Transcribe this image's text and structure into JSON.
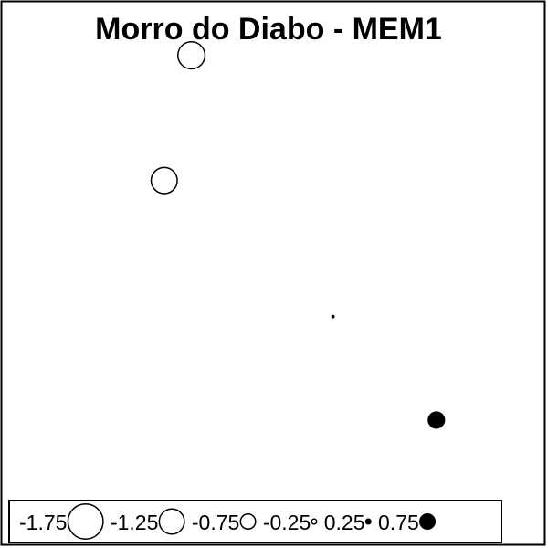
{
  "chart_data": {
    "type": "scatter",
    "title": "Morro do Diabo - MEM1",
    "xlabel": "",
    "ylabel": "",
    "grid": false,
    "legend_position": "bottom",
    "xlim": [
      0,
      1
    ],
    "ylim": [
      0,
      1
    ],
    "points": [
      {
        "x": 0.35,
        "y": 0.9,
        "value": -1.35
      },
      {
        "x": 0.3,
        "y": 0.67,
        "value": -1.3
      },
      {
        "x": 0.61,
        "y": 0.42,
        "value": 0.05
      },
      {
        "x": 0.8,
        "y": 0.23,
        "value": 0.8
      }
    ],
    "legend": {
      "entries": [
        {
          "label": "-1.75",
          "value": -1.75
        },
        {
          "label": "-1.25",
          "value": -1.25
        },
        {
          "label": "-0.75",
          "value": -0.75
        },
        {
          "label": "-0.25",
          "value": -0.25
        },
        {
          "label": "0.25",
          "value": 0.25
        },
        {
          "label": "0.75",
          "value": 0.75
        }
      ]
    },
    "colors": {
      "negative_fill": "#ffffff",
      "positive_fill": "#000000",
      "stroke": "#000000"
    }
  }
}
